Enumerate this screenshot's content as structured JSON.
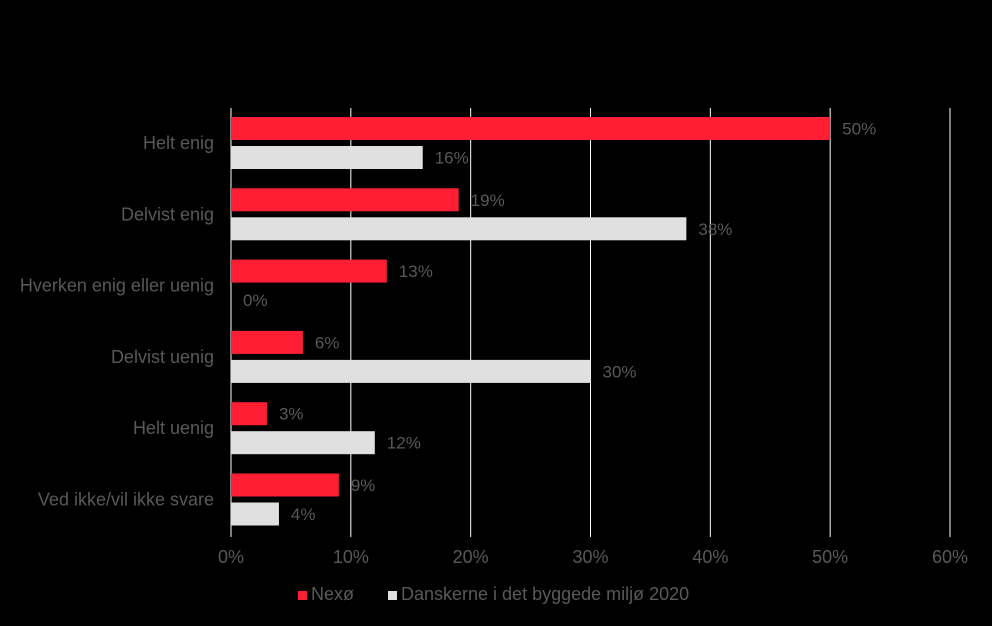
{
  "chart_data": {
    "type": "bar",
    "orientation": "horizontal",
    "categories": [
      "Helt enig",
      "Delvist enig",
      "Hverken enig eller uenig",
      "Delvist uenig",
      "Helt uenig",
      "Ved ikke/vil ikke svare"
    ],
    "series": [
      {
        "name": "Nexø",
        "color": "#ff1f35",
        "values": [
          50,
          19,
          13,
          6,
          3,
          9
        ],
        "labels": [
          "50%",
          "19%",
          "13%",
          "6%",
          "3%",
          "9%"
        ]
      },
      {
        "name": "Danskerne i det byggede miljø 2020",
        "color": "#e0e0e0",
        "values": [
          16,
          38,
          0,
          30,
          12,
          4
        ],
        "labels": [
          "16%",
          "38%",
          "0%",
          "30%",
          "12%",
          "4%"
        ]
      }
    ],
    "xlim": [
      0,
      60
    ],
    "xticks": [
      0,
      10,
      20,
      30,
      40,
      50,
      60
    ],
    "xtick_labels": [
      "0%",
      "10%",
      "20%",
      "30%",
      "40%",
      "50%",
      "60%"
    ],
    "grid": "vertical",
    "legend": "bottom-center",
    "title": "",
    "xlabel": "",
    "ylabel": ""
  },
  "colors": {
    "background": "#000000",
    "text": "#595959",
    "gridline": "#ffffff"
  }
}
